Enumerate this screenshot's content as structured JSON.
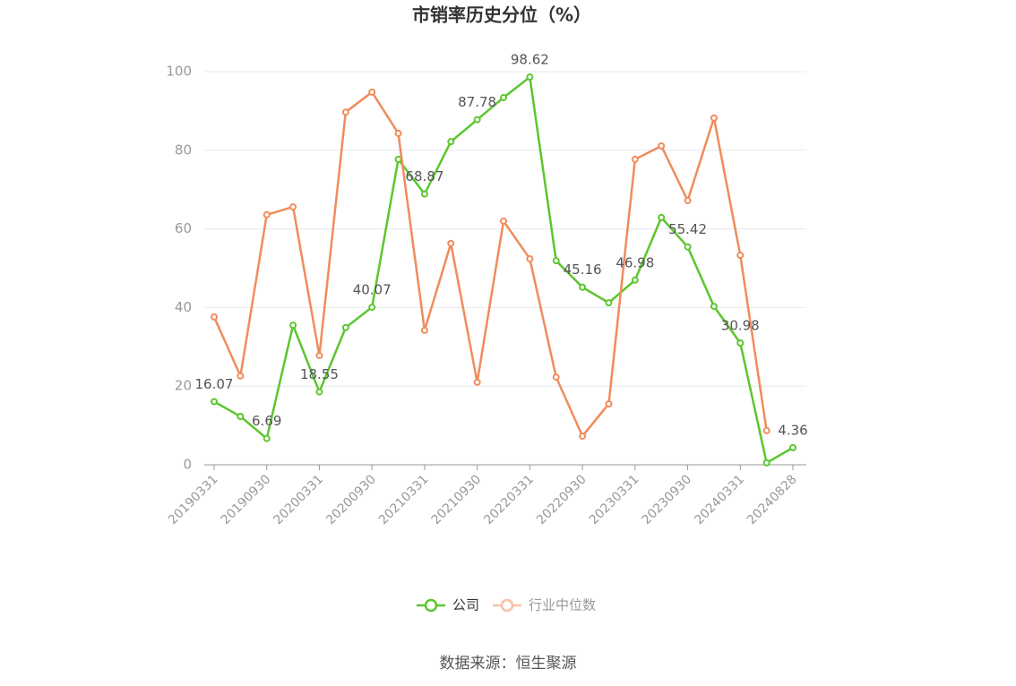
{
  "chart_data": {
    "type": "line",
    "title": "市销率历史分位（%）",
    "categories": [
      "20190331",
      null,
      "20190930",
      null,
      "20200331",
      null,
      "20200930",
      null,
      "20210331",
      null,
      "20210930",
      null,
      "20220331",
      null,
      "20220930",
      null,
      "20230331",
      null,
      "20230930",
      null,
      "20240331",
      null,
      "20240828"
    ],
    "series": [
      {
        "name": "公司",
        "color": "#5cc62f",
        "values": [
          16.07,
          12.3,
          6.69,
          35.5,
          18.55,
          34.9,
          40.07,
          77.7,
          68.87,
          82.2,
          87.78,
          93.4,
          98.62,
          51.9,
          45.16,
          41.2,
          46.98,
          62.9,
          55.42,
          40.3,
          30.98,
          0.5,
          4.36
        ]
      },
      {
        "name": "行业中位数",
        "color": "#f08c5c",
        "values": [
          37.6,
          22.6,
          63.6,
          65.6,
          27.8,
          89.7,
          94.8,
          84.3,
          34.2,
          56.3,
          21.0,
          62.0,
          52.4,
          22.3,
          7.3,
          15.5,
          77.7,
          81.1,
          67.2,
          88.2,
          53.3,
          8.7,
          null
        ]
      }
    ],
    "ylim": [
      0,
      100
    ],
    "yticks": [
      0,
      20,
      40,
      60,
      80,
      100
    ],
    "grid": true,
    "legend": "bottom",
    "source": "数据来源：恒生聚源"
  }
}
